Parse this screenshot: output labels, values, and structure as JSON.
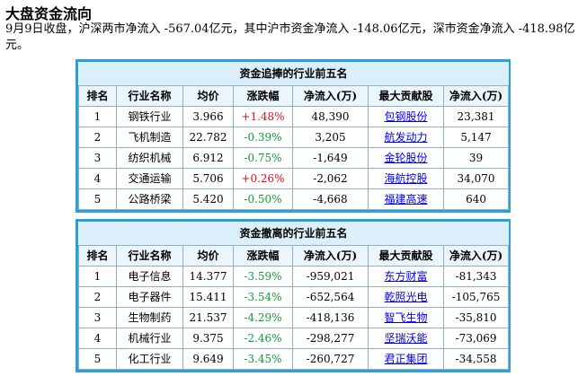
{
  "page": {
    "title": "大盘资金流向",
    "intro": "9月9日收盘，沪深两市净流入 -567.04亿元，其中沪市资金净流入 -148.06亿元，深市资金净流入 -418.98亿元。"
  },
  "colors": {
    "up": "#e0101a",
    "down": "#0f9a3a",
    "link": "#0000ee",
    "frame": "#2a9fd8"
  },
  "columns": [
    "排名",
    "行业名称",
    "均价",
    "涨跌幅",
    "净流入(万)",
    "最大贡献股",
    "净流入(万)"
  ],
  "inflow": {
    "caption": "资金追捧的行业前五名",
    "rows": [
      {
        "rank": "1",
        "industry": "钢铁行业",
        "price": "3.966",
        "change": "+1.48%",
        "dir": "up",
        "net": "48,390",
        "stock": "包钢股份",
        "stock_net": "23,381"
      },
      {
        "rank": "2",
        "industry": "飞机制造",
        "price": "22.782",
        "change": "-0.39%",
        "dir": "down",
        "net": "3,205",
        "stock": "航发动力",
        "stock_net": "5,147"
      },
      {
        "rank": "3",
        "industry": "纺织机械",
        "price": "6.912",
        "change": "-0.75%",
        "dir": "down",
        "net": "-1,649",
        "stock": "金轮股份",
        "stock_net": "39"
      },
      {
        "rank": "4",
        "industry": "交通运输",
        "price": "5.706",
        "change": "+0.26%",
        "dir": "up",
        "net": "-2,062",
        "stock": "海航控股",
        "stock_net": "34,070"
      },
      {
        "rank": "5",
        "industry": "公路桥梁",
        "price": "5.420",
        "change": "-0.50%",
        "dir": "down",
        "net": "-4,668",
        "stock": "福建高速",
        "stock_net": "640"
      }
    ]
  },
  "outflow": {
    "caption": "资金撤离的行业前五名",
    "rows": [
      {
        "rank": "1",
        "industry": "电子信息",
        "price": "14.377",
        "change": "-3.59%",
        "dir": "down",
        "net": "-959,021",
        "stock": "东方财富",
        "stock_net": "-81,343"
      },
      {
        "rank": "2",
        "industry": "电子器件",
        "price": "15.411",
        "change": "-3.54%",
        "dir": "down",
        "net": "-652,564",
        "stock": "乾照光电",
        "stock_net": "-105,765"
      },
      {
        "rank": "3",
        "industry": "生物制药",
        "price": "21.537",
        "change": "-4.29%",
        "dir": "down",
        "net": "-418,136",
        "stock": "智飞生物",
        "stock_net": "-35,810"
      },
      {
        "rank": "4",
        "industry": "机械行业",
        "price": "9.375",
        "change": "-2.46%",
        "dir": "down",
        "net": "-298,277",
        "stock": "坚瑞沃能",
        "stock_net": "-73,069"
      },
      {
        "rank": "5",
        "industry": "化工行业",
        "price": "9.649",
        "change": "-3.45%",
        "dir": "down",
        "net": "-260,727",
        "stock": "君正集团",
        "stock_net": "-34,558"
      }
    ]
  }
}
